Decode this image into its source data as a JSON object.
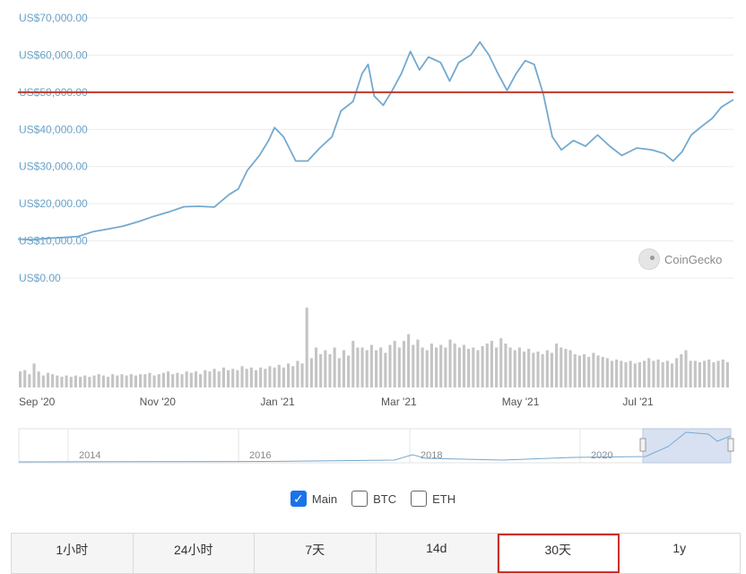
{
  "chart_data": {
    "type": "line",
    "ylabels": [
      "US$70,000.00",
      "US$60,000.00",
      "US$50,000.00",
      "US$40,000.00",
      "US$30,000.00",
      "US$20,000.00",
      "US$10,000.00",
      "US$0.00"
    ],
    "ylim": [
      0,
      70000
    ],
    "reference_line": 50000,
    "xlabels": [
      "Sep '20",
      "Nov '20",
      "Jan '21",
      "Mar '21",
      "May '21",
      "Jul '21"
    ],
    "xlabel_positions": [
      0,
      4,
      8,
      12,
      16,
      20
    ],
    "xlim": [
      0,
      23.7
    ],
    "price": [
      [
        0,
        10500
      ],
      [
        0.5,
        10300
      ],
      [
        1,
        10700
      ],
      [
        1.5,
        10900
      ],
      [
        2,
        11200
      ],
      [
        2.5,
        12500
      ],
      [
        3,
        13200
      ],
      [
        3.5,
        14000
      ],
      [
        4,
        15200
      ],
      [
        4.5,
        16600
      ],
      [
        5,
        17800
      ],
      [
        5.5,
        19200
      ],
      [
        6,
        19300
      ],
      [
        6.5,
        19100
      ],
      [
        7,
        22500
      ],
      [
        7.3,
        24000
      ],
      [
        7.6,
        29000
      ],
      [
        8,
        33000
      ],
      [
        8.3,
        37000
      ],
      [
        8.5,
        40500
      ],
      [
        8.8,
        38000
      ],
      [
        9.2,
        31500
      ],
      [
        9.6,
        31500
      ],
      [
        10,
        35000
      ],
      [
        10.4,
        38000
      ],
      [
        10.7,
        45000
      ],
      [
        11.1,
        47500
      ],
      [
        11.4,
        55000
      ],
      [
        11.6,
        57500
      ],
      [
        11.8,
        49000
      ],
      [
        12.1,
        46500
      ],
      [
        12.4,
        50500
      ],
      [
        12.7,
        55000
      ],
      [
        13,
        61000
      ],
      [
        13.3,
        56000
      ],
      [
        13.6,
        59500
      ],
      [
        14,
        58000
      ],
      [
        14.3,
        53000
      ],
      [
        14.6,
        58000
      ],
      [
        15,
        60000
      ],
      [
        15.3,
        63500
      ],
      [
        15.6,
        60000
      ],
      [
        15.9,
        55000
      ],
      [
        16.2,
        50500
      ],
      [
        16.5,
        55000
      ],
      [
        16.8,
        58500
      ],
      [
        17.1,
        57500
      ],
      [
        17.4,
        49500
      ],
      [
        17.7,
        38000
      ],
      [
        18,
        34500
      ],
      [
        18.4,
        37000
      ],
      [
        18.8,
        35500
      ],
      [
        19.2,
        38500
      ],
      [
        19.6,
        35500
      ],
      [
        20,
        33000
      ],
      [
        20.5,
        35000
      ],
      [
        21,
        34500
      ],
      [
        21.4,
        33500
      ],
      [
        21.7,
        31500
      ],
      [
        22,
        34000
      ],
      [
        22.3,
        38500
      ],
      [
        22.6,
        40500
      ],
      [
        23,
        43000
      ],
      [
        23.3,
        46000
      ],
      [
        23.7,
        48000
      ]
    ],
    "volume": [
      0.12,
      0.13,
      0.1,
      0.18,
      0.12,
      0.09,
      0.11,
      0.1,
      0.09,
      0.08,
      0.09,
      0.08,
      0.09,
      0.08,
      0.09,
      0.08,
      0.09,
      0.1,
      0.09,
      0.08,
      0.1,
      0.09,
      0.1,
      0.09,
      0.1,
      0.09,
      0.1,
      0.1,
      0.11,
      0.09,
      0.1,
      0.11,
      0.12,
      0.1,
      0.11,
      0.1,
      0.12,
      0.11,
      0.12,
      0.1,
      0.13,
      0.12,
      0.14,
      0.12,
      0.15,
      0.13,
      0.14,
      0.13,
      0.16,
      0.14,
      0.15,
      0.13,
      0.15,
      0.14,
      0.16,
      0.15,
      0.17,
      0.15,
      0.18,
      0.16,
      0.2,
      0.18,
      0.6,
      0.22,
      0.3,
      0.25,
      0.28,
      0.25,
      0.3,
      0.22,
      0.28,
      0.24,
      0.35,
      0.3,
      0.3,
      0.28,
      0.32,
      0.28,
      0.3,
      0.26,
      0.32,
      0.35,
      0.3,
      0.35,
      0.4,
      0.32,
      0.36,
      0.3,
      0.28,
      0.33,
      0.3,
      0.32,
      0.3,
      0.36,
      0.33,
      0.3,
      0.32,
      0.29,
      0.3,
      0.28,
      0.31,
      0.33,
      0.35,
      0.3,
      0.37,
      0.33,
      0.3,
      0.28,
      0.3,
      0.27,
      0.29,
      0.26,
      0.27,
      0.25,
      0.28,
      0.26,
      0.33,
      0.3,
      0.29,
      0.28,
      0.25,
      0.24,
      0.25,
      0.23,
      0.26,
      0.24,
      0.23,
      0.22,
      0.2,
      0.21,
      0.2,
      0.19,
      0.2,
      0.18,
      0.19,
      0.2,
      0.22,
      0.2,
      0.21,
      0.19,
      0.2,
      0.18,
      0.22,
      0.25,
      0.28,
      0.2,
      0.2,
      0.19,
      0.2,
      0.21,
      0.19,
      0.2,
      0.21,
      0.19
    ],
    "navigator": {
      "labels": [
        "2014",
        "2016",
        "2018",
        "2020"
      ],
      "positions": [
        88,
        278,
        469,
        659
      ]
    },
    "colors": {
      "line": "#74a9cf",
      "reference": "#c0392b",
      "volume": "#c4c4c4",
      "grid": "#ececec"
    }
  },
  "brand": {
    "name": "CoinGecko"
  },
  "legend": [
    {
      "label": "Main",
      "checked": true
    },
    {
      "label": "BTC",
      "checked": false
    },
    {
      "label": "ETH",
      "checked": false
    }
  ],
  "tabs": [
    {
      "label": "1小时",
      "highlighted": false
    },
    {
      "label": "24小时",
      "highlighted": false
    },
    {
      "label": "7天",
      "highlighted": false
    },
    {
      "label": "14d",
      "highlighted": false
    },
    {
      "label": "30天",
      "highlighted": true
    },
    {
      "label": "1y",
      "highlighted": false
    }
  ]
}
